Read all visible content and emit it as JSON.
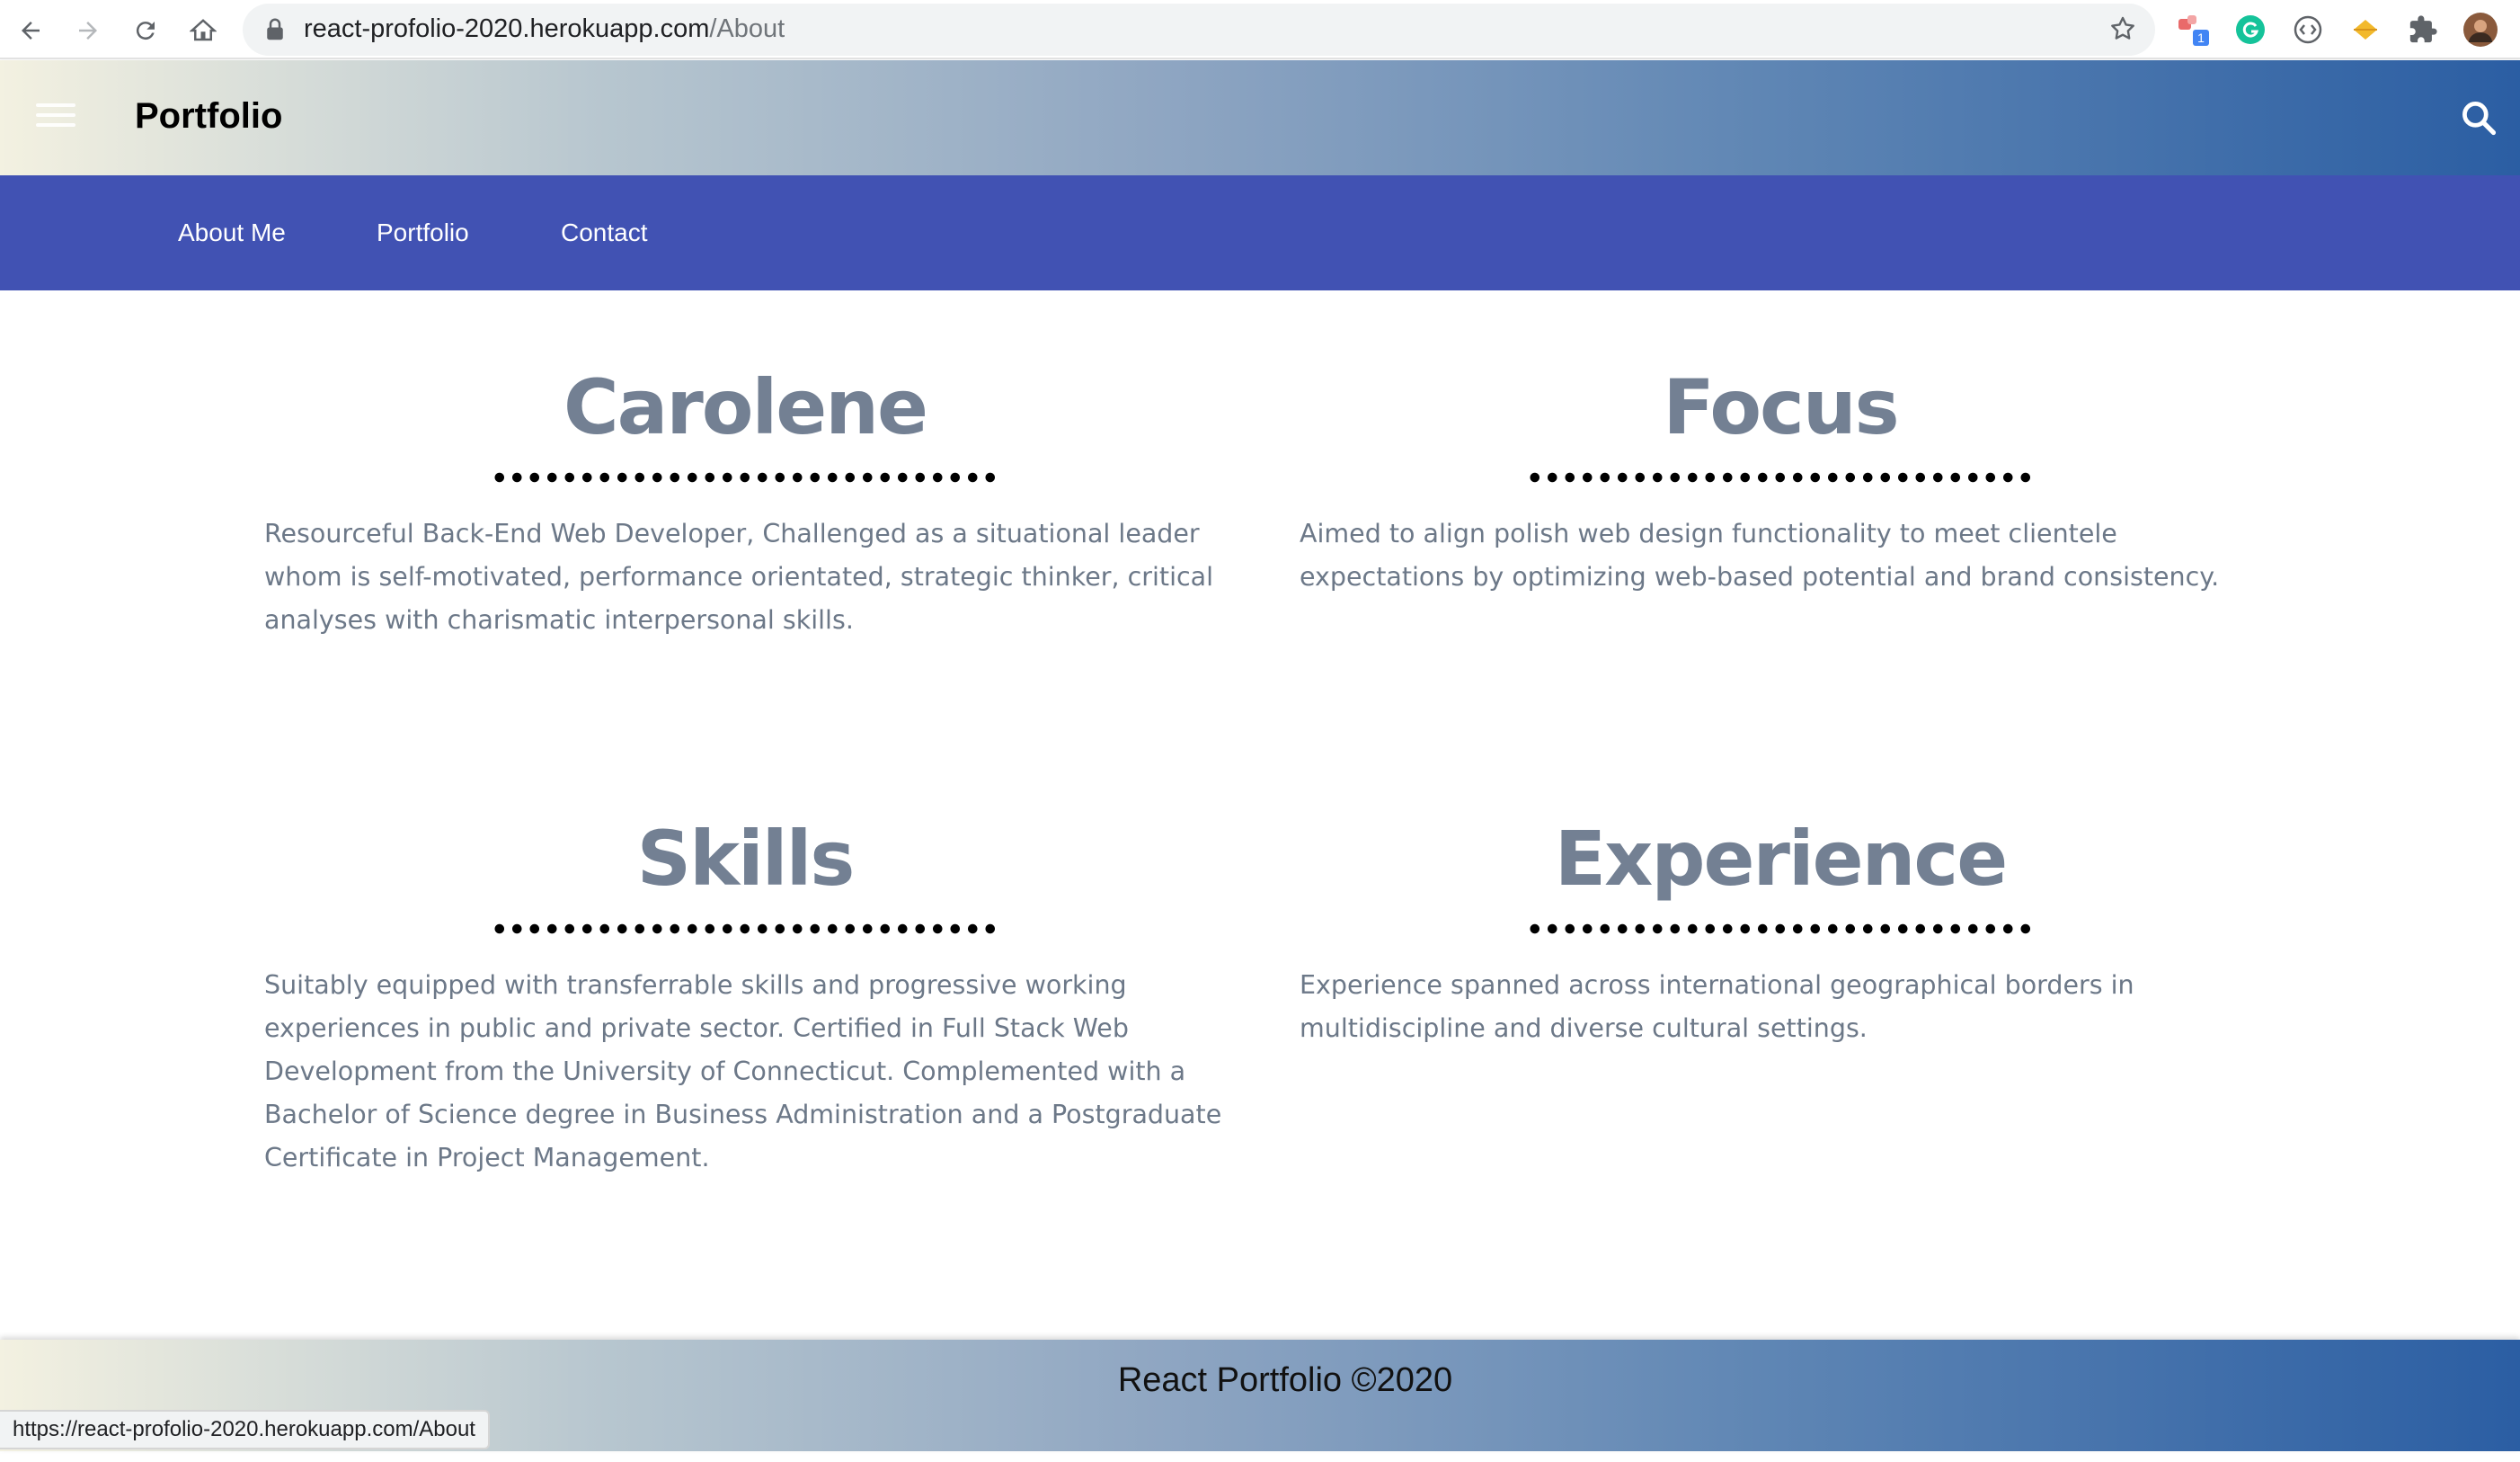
{
  "browser": {
    "url_host": "react-profolio-2020.herokuapp.com",
    "url_path": "/About",
    "extension_badge": "1",
    "status_url": "https://react-profolio-2020.herokuapp.com/About"
  },
  "header": {
    "brand": "Portfolio"
  },
  "tabs": [
    {
      "label": "About Me"
    },
    {
      "label": "Portfolio"
    },
    {
      "label": "Contact"
    }
  ],
  "sections": [
    {
      "title": "Carolene",
      "text": "Resourceful Back-End Web Developer, Challenged as a situational leader whom is self-motivated, performance orientated, strategic thinker, critical analyses with charismatic interpersonal skills."
    },
    {
      "title": "Focus",
      "text": "Aimed to align polish web design functionality to meet clientele expectations by optimizing web-based potential and brand consistency."
    },
    {
      "title": "Skills",
      "text": "Suitably equipped with transferrable skills and progressive working experiences in public and private sector. Certified in Full Stack Web Development from the University of Connecticut. Complemented with a Bachelor of Science degree in Business Administration and a Postgraduate Certificate in Project Management."
    },
    {
      "title": "Experience",
      "text": "Experience spanned across international geographical borders in multidiscipline and diverse cultural settings."
    }
  ],
  "footer": {
    "text": "React Portfolio ©2020"
  },
  "colors": {
    "tab_bar": "#4152b3",
    "heading": "#738093",
    "body_text": "#6c7888"
  }
}
